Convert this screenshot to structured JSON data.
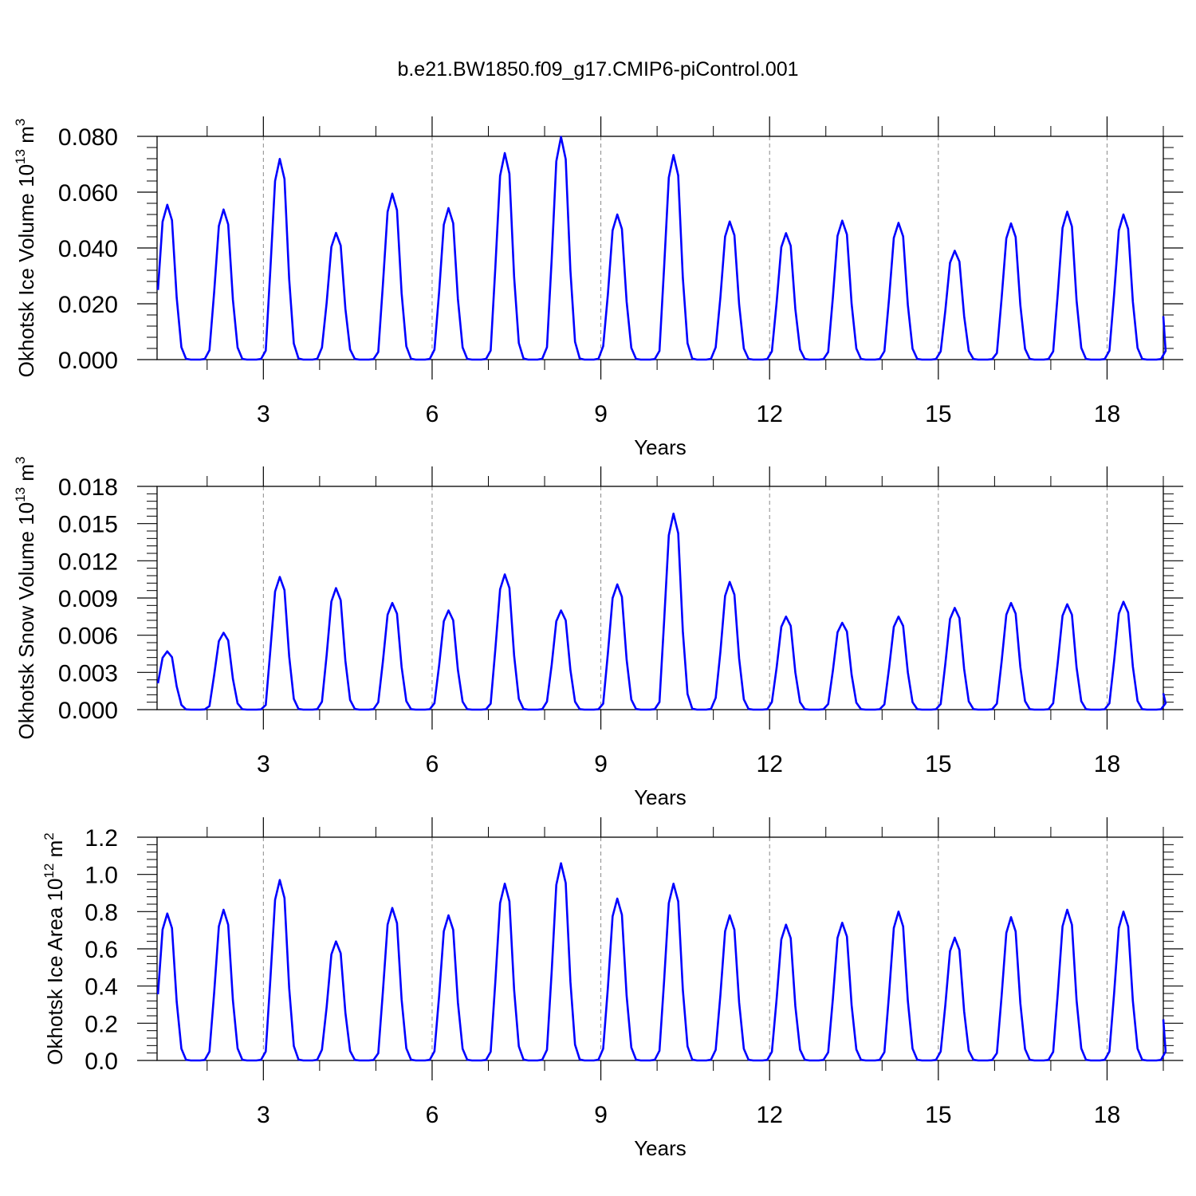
{
  "title": "b.e21.BW1850.f09_g17.CMIP6-piControl.001",
  "chart_data": [
    {
      "type": "line",
      "xlabel": "Years",
      "ylabel": "Okhotsk Ice Volume 10",
      "ylabel_exponent": "13",
      "ylabel_unit": " m",
      "ylabel_unit_exponent": "3",
      "xlim": [
        1.11,
        19.0
      ],
      "ylim": [
        0,
        0.08
      ],
      "yticks": [
        0,
        0.02,
        0.04,
        0.06,
        0.08
      ],
      "ytick_labels": [
        "0.000",
        "0.020",
        "0.040",
        "0.060",
        "0.080"
      ],
      "xticks": [
        3,
        6,
        9,
        12,
        15,
        18
      ],
      "xtick_labels": [
        "3",
        "6",
        "9",
        "12",
        "15",
        "18"
      ],
      "vgrid": [
        3,
        6,
        9,
        12,
        15,
        18
      ],
      "color": "#0000ff",
      "peaks": [
        0.0555,
        0.0538,
        0.0719,
        0.0454,
        0.0595,
        0.0543,
        0.074,
        0.0798,
        0.052,
        0.0733,
        0.0495,
        0.0453,
        0.0498,
        0.049,
        0.039,
        0.0488,
        0.053,
        0.052
      ],
      "x": [],
      "y": []
    },
    {
      "type": "line",
      "xlabel": "Years",
      "ylabel": "Okhotsk Snow Volume 10",
      "ylabel_exponent": "13",
      "ylabel_unit": " m",
      "ylabel_unit_exponent": "3",
      "xlim": [
        1.11,
        19.0
      ],
      "ylim": [
        0,
        0.018
      ],
      "yticks": [
        0,
        0.003,
        0.006,
        0.009,
        0.012,
        0.015,
        0.018
      ],
      "ytick_labels": [
        "0.000",
        "0.003",
        "0.006",
        "0.009",
        "0.012",
        "0.015",
        "0.018"
      ],
      "xticks": [
        3,
        6,
        9,
        12,
        15,
        18
      ],
      "xtick_labels": [
        "3",
        "6",
        "9",
        "12",
        "15",
        "18"
      ],
      "vgrid": [
        3,
        6,
        9,
        12,
        15,
        18
      ],
      "color": "#0000ff",
      "peaks": [
        0.0047,
        0.0062,
        0.0107,
        0.0098,
        0.0086,
        0.008,
        0.0109,
        0.008,
        0.0101,
        0.0158,
        0.0103,
        0.0075,
        0.007,
        0.0075,
        0.0082,
        0.0086,
        0.0085,
        0.0087
      ],
      "x": [],
      "y": []
    },
    {
      "type": "line",
      "xlabel": "Years",
      "ylabel": "Okhotsk Ice Area 10",
      "ylabel_exponent": "12",
      "ylabel_unit": " m",
      "ylabel_unit_exponent": "2",
      "xlim": [
        1.11,
        19.0
      ],
      "ylim": [
        0,
        1.2
      ],
      "yticks": [
        0,
        0.2,
        0.4,
        0.6,
        0.8,
        1.0,
        1.2
      ],
      "ytick_labels": [
        "0.0",
        "0.2",
        "0.4",
        "0.6",
        "0.8",
        "1.0",
        "1.2"
      ],
      "xticks": [
        3,
        6,
        9,
        12,
        15,
        18
      ],
      "xtick_labels": [
        "3",
        "6",
        "9",
        "12",
        "15",
        "18"
      ],
      "vgrid": [
        3,
        6,
        9,
        12,
        15,
        18
      ],
      "color": "#0000ff",
      "peaks": [
        0.79,
        0.81,
        0.97,
        0.64,
        0.82,
        0.78,
        0.95,
        1.06,
        0.87,
        0.95,
        0.78,
        0.73,
        0.74,
        0.8,
        0.66,
        0.77,
        0.81,
        0.8
      ],
      "x": [],
      "y": []
    }
  ]
}
